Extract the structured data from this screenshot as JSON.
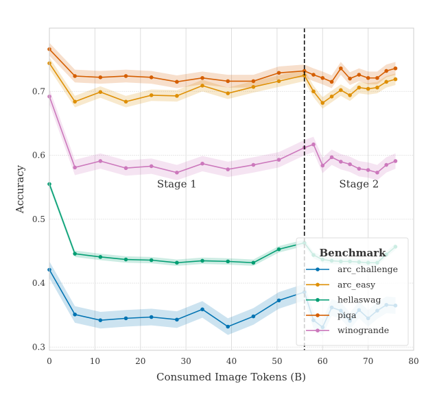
{
  "chart_data": {
    "type": "line",
    "title": "",
    "xlabel": "Consumed Image Tokens (B)",
    "ylabel": "Accuracy",
    "xlim": [
      0,
      80
    ],
    "ylim": [
      0.295,
      0.799
    ],
    "xticks": [
      0,
      10,
      20,
      30,
      40,
      50,
      60,
      70,
      80
    ],
    "yticks": [
      0.3,
      0.4,
      0.5,
      0.6,
      0.7
    ],
    "grid": true,
    "stage_boundary_x": 56,
    "annotations": [
      {
        "text": "Stage 1",
        "x": 28,
        "y": 0.555
      },
      {
        "text": "Stage 2",
        "x": 68,
        "y": 0.555
      }
    ],
    "legend": {
      "title": "Benchmark",
      "placement": "lower-right"
    },
    "x": [
      0,
      5.6,
      11.2,
      16.8,
      22.4,
      28,
      33.6,
      39.2,
      44.8,
      50.4,
      56,
      58,
      60,
      62,
      64,
      66,
      68,
      70,
      72,
      74,
      76
    ],
    "series": [
      {
        "name": "arc_challenge",
        "color": "#0173b2",
        "band": 0.013,
        "values": [
          0.421,
          0.351,
          0.342,
          0.345,
          0.347,
          0.343,
          0.359,
          0.332,
          0.348,
          0.373,
          0.386,
          0.342,
          0.331,
          0.362,
          0.357,
          0.341,
          0.358,
          0.345,
          0.357,
          0.366,
          0.365
        ]
      },
      {
        "name": "arc_easy",
        "color": "#de8f05",
        "band": 0.009,
        "values": [
          0.744,
          0.684,
          0.699,
          0.684,
          0.694,
          0.693,
          0.709,
          0.697,
          0.707,
          0.716,
          0.725,
          0.7,
          0.682,
          0.692,
          0.702,
          0.694,
          0.706,
          0.704,
          0.706,
          0.715,
          0.719
        ]
      },
      {
        "name": "hellaswag",
        "color": "#029e73",
        "band": 0.005,
        "values": [
          0.555,
          0.446,
          0.441,
          0.437,
          0.436,
          0.432,
          0.435,
          0.434,
          0.432,
          0.453,
          0.463,
          0.444,
          0.437,
          0.435,
          0.434,
          0.434,
          0.433,
          0.432,
          0.432,
          0.445,
          0.457
        ]
      },
      {
        "name": "piqa",
        "color": "#d55e00",
        "band": 0.01,
        "values": [
          0.766,
          0.724,
          0.722,
          0.724,
          0.722,
          0.715,
          0.721,
          0.716,
          0.716,
          0.729,
          0.732,
          0.726,
          0.721,
          0.715,
          0.736,
          0.72,
          0.726,
          0.721,
          0.721,
          0.732,
          0.736
        ]
      },
      {
        "name": "winogrande",
        "color": "#cc78bc",
        "band": 0.012,
        "values": [
          0.692,
          0.581,
          0.591,
          0.58,
          0.583,
          0.573,
          0.587,
          0.578,
          0.585,
          0.593,
          0.612,
          0.617,
          0.584,
          0.597,
          0.59,
          0.586,
          0.579,
          0.577,
          0.573,
          0.585,
          0.591
        ]
      }
    ]
  }
}
